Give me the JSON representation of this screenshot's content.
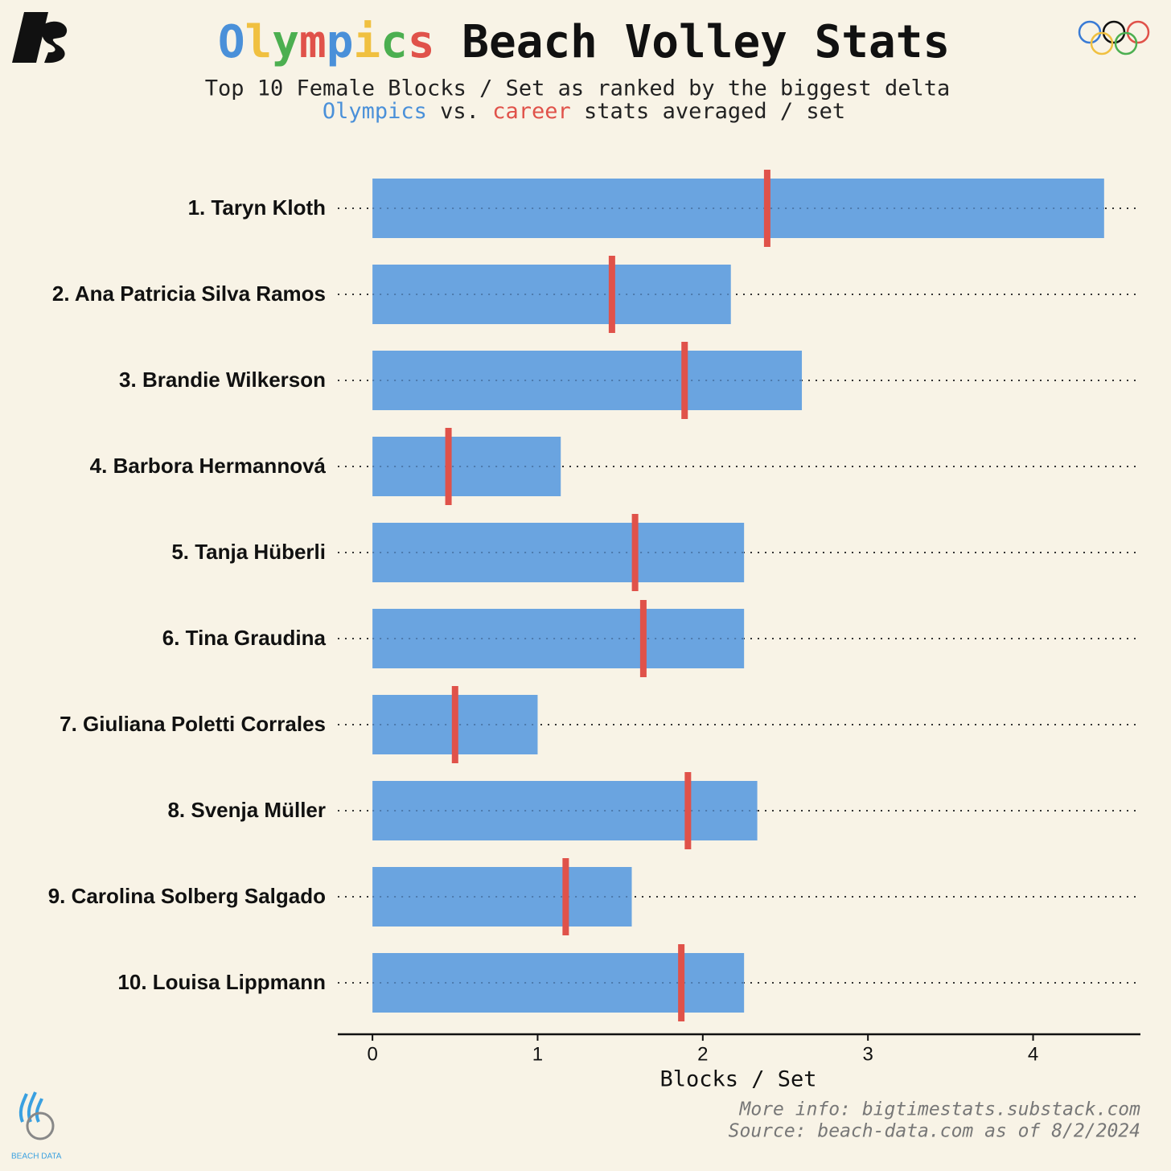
{
  "chart_data": {
    "type": "bar_marker",
    "orientation": "horizontal",
    "title": "Olympics Beach Volley Stats",
    "title_colors": [
      "#4a90d9",
      "#f0c040",
      "#4caf50",
      "#e0524a",
      "#4a90d9",
      "#f0c040",
      "#4caf50",
      "#e0524a"
    ],
    "subtitle": "Top 10 Female Blocks / Set as ranked by the biggest delta",
    "legend_connector": "vs.",
    "legend_suffix": "stats averaged / set",
    "categories": [
      "1. Taryn Kloth",
      "2. Ana Patricia Silva Ramos",
      "3. Brandie Wilkerson",
      "4. Barbora Hermannová",
      "5. Tanja Hüberli",
      "6. Tina Graudina",
      "7. Giuliana Poletti Corrales",
      "8. Svenja Müller",
      "9. Carolina Solberg Salgado",
      "10. Louisa Lippmann"
    ],
    "series": [
      {
        "name": "Olympics",
        "color": "#6aa4e0",
        "values": [
          4.43,
          2.17,
          2.6,
          1.14,
          2.25,
          2.25,
          1.0,
          2.33,
          1.57,
          2.25
        ]
      },
      {
        "name": "career",
        "color": "#e0524a",
        "values": [
          2.39,
          1.45,
          1.89,
          0.46,
          1.59,
          1.64,
          0.5,
          1.91,
          1.17,
          1.87
        ]
      }
    ],
    "xlabel": "Blocks / Set",
    "xlim": [
      -0.21,
      4.65
    ],
    "xticks": [
      0,
      1,
      2,
      3,
      4
    ],
    "footer": [
      "More info: bigtimestats.substack.com",
      "Source: beach-data.com as of 8/2/2024"
    ],
    "logo_text": "BEACH DATA"
  }
}
